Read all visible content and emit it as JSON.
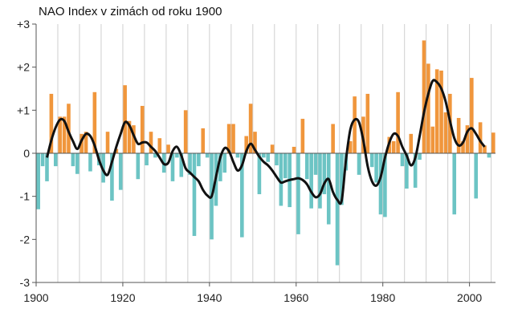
{
  "chart_data": {
    "type": "bar",
    "title": "NAO Index v zimách od roku 1900",
    "xlabel": "",
    "ylabel": "",
    "xlim": [
      1900,
      2006
    ],
    "ylim": [
      -3,
      3
    ],
    "xticks": [
      1900,
      1920,
      1940,
      1960,
      1980,
      2000
    ],
    "xtick_labels": [
      "1900",
      "1920",
      "1940",
      "1960",
      "1980",
      "2000"
    ],
    "yticks": [
      3,
      2,
      1,
      0,
      -1,
      -2,
      -3
    ],
    "ytick_labels": [
      "+3",
      "+2",
      "+1",
      "0",
      "-1",
      "-2",
      "-3"
    ],
    "grid": {
      "vertical": true,
      "horizontal": false
    },
    "colors": {
      "positive": "#f0963c",
      "negative": "#6cc4c4",
      "smooth": "#111111",
      "grid": "#cfcfcf",
      "axis": "#555555"
    },
    "years": [
      1900,
      1901,
      1902,
      1903,
      1904,
      1905,
      1906,
      1907,
      1908,
      1909,
      1910,
      1911,
      1912,
      1913,
      1914,
      1915,
      1916,
      1917,
      1918,
      1919,
      1920,
      1921,
      1922,
      1923,
      1924,
      1925,
      1926,
      1927,
      1928,
      1929,
      1930,
      1931,
      1932,
      1933,
      1934,
      1935,
      1936,
      1937,
      1938,
      1939,
      1940,
      1941,
      1942,
      1943,
      1944,
      1945,
      1946,
      1947,
      1948,
      1949,
      1950,
      1951,
      1952,
      1953,
      1954,
      1955,
      1956,
      1957,
      1958,
      1959,
      1960,
      1961,
      1962,
      1963,
      1964,
      1965,
      1966,
      1967,
      1968,
      1969,
      1970,
      1971,
      1972,
      1973,
      1974,
      1975,
      1976,
      1977,
      1978,
      1979,
      1980,
      1981,
      1982,
      1983,
      1984,
      1985,
      1986,
      1987,
      1988,
      1989,
      1990,
      1991,
      1992,
      1993,
      1994,
      1995,
      1996,
      1997,
      1998,
      1999,
      2000,
      2001,
      2002,
      2003,
      2004,
      2005
    ],
    "values": [
      -1.3,
      -0.3,
      -0.65,
      1.38,
      -0.3,
      0.85,
      0.85,
      1.15,
      -0.3,
      -0.48,
      0.45,
      0.5,
      -0.42,
      1.42,
      -0.28,
      -0.68,
      0.5,
      -1.1,
      0.1,
      -0.85,
      1.58,
      0.75,
      0.65,
      -0.6,
      1.1,
      -0.28,
      0.5,
      -0.1,
      0.35,
      -0.45,
      0.2,
      -0.65,
      -0.1,
      -0.55,
      1.0,
      -0.5,
      -1.92,
      -0.3,
      0.58,
      -0.1,
      -2.0,
      -1.22,
      -0.65,
      -0.45,
      0.68,
      0.68,
      -0.1,
      -1.95,
      0.4,
      1.15,
      0.5,
      -0.95,
      -0.1,
      -0.2,
      0.2,
      -0.28,
      -1.22,
      -0.58,
      -1.25,
      0.15,
      -1.88,
      0.8,
      -0.6,
      -1.28,
      -0.5,
      -1.28,
      -0.95,
      -1.65,
      0.68,
      -2.6,
      -1.2,
      -0.4,
      0.28,
      1.32,
      -0.5,
      0.85,
      1.38,
      -0.32,
      -0.68,
      -1.42,
      -1.48,
      0.38,
      0.28,
      1.42,
      -0.3,
      -0.82,
      0.45,
      -0.8,
      -0.15,
      2.62,
      2.08,
      0.62,
      1.95,
      1.92,
      0.95,
      1.38,
      -1.42,
      0.82,
      0.28,
      0.65,
      1.75,
      -1.05,
      0.72,
      0.18,
      -0.1,
      0.48
    ],
    "smooth_series": {
      "x": [
        1902,
        1903,
        1904,
        1905,
        1906,
        1907,
        1908,
        1909,
        1910,
        1911,
        1912,
        1913,
        1914,
        1915,
        1916,
        1917,
        1918,
        1919,
        1920,
        1921,
        1922,
        1923,
        1924,
        1925,
        1926,
        1927,
        1928,
        1929,
        1930,
        1931,
        1932,
        1933,
        1934,
        1935,
        1936,
        1937,
        1938,
        1939,
        1940,
        1941,
        1942,
        1943,
        1944,
        1945,
        1946,
        1947,
        1948,
        1949,
        1950,
        1951,
        1952,
        1953,
        1954,
        1955,
        1956,
        1957,
        1958,
        1959,
        1960,
        1961,
        1962,
        1963,
        1964,
        1965,
        1966,
        1967,
        1968,
        1969,
        1970,
        1971,
        1972,
        1973,
        1974,
        1975,
        1976,
        1977,
        1978,
        1979,
        1980,
        1981,
        1982,
        1983,
        1984,
        1985,
        1986,
        1987,
        1988,
        1989,
        1990,
        1991,
        1992,
        1993,
        1994,
        1995,
        1996,
        1997,
        1998,
        1999,
        2000,
        2001,
        2002,
        2003
      ],
      "y": [
        -0.1,
        0.3,
        0.6,
        0.78,
        0.75,
        0.5,
        0.28,
        0.1,
        0.3,
        0.45,
        0.4,
        0.18,
        -0.15,
        -0.4,
        -0.5,
        -0.2,
        0.15,
        0.45,
        0.72,
        0.65,
        0.42,
        0.22,
        0.25,
        0.25,
        0.15,
        0.05,
        -0.1,
        -0.25,
        -0.22,
        0.05,
        0.15,
        -0.05,
        -0.35,
        -0.45,
        -0.55,
        -0.65,
        -0.85,
        -0.98,
        -1.0,
        -0.55,
        -0.1,
        0.12,
        0.05,
        -0.2,
        -0.4,
        -0.28,
        0.05,
        0.22,
        0.08,
        -0.08,
        -0.2,
        -0.28,
        -0.4,
        -0.55,
        -0.68,
        -0.65,
        -0.62,
        -0.6,
        -0.58,
        -0.62,
        -0.72,
        -0.9,
        -1.02,
        -0.95,
        -0.7,
        -0.6,
        -0.9,
        -1.08,
        -1.1,
        -0.15,
        0.55,
        0.78,
        0.72,
        0.3,
        -0.3,
        -0.65,
        -0.75,
        -0.55,
        -0.1,
        0.25,
        0.45,
        0.4,
        0.15,
        -0.05,
        -0.28,
        -0.1,
        0.4,
        0.95,
        1.38,
        1.68,
        1.65,
        1.5,
        1.2,
        0.75,
        0.35,
        0.18,
        0.25,
        0.5,
        0.58,
        0.45,
        0.28,
        0.15
      ]
    }
  }
}
